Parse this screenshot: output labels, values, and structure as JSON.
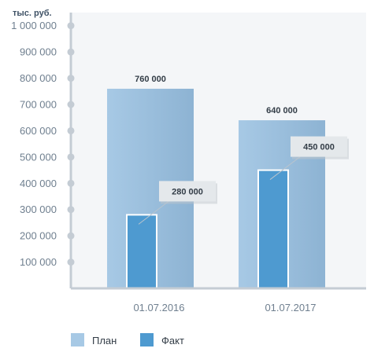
{
  "chart_data": {
    "type": "bar",
    "unit_label": "тыс. руб.",
    "categories": [
      "01.07.2016",
      "01.07.2017"
    ],
    "series": [
      {
        "name": "План",
        "values": [
          760000,
          640000
        ],
        "color": "#a7c9e5",
        "color_dark": "#8db3d3"
      },
      {
        "name": "Факт",
        "values": [
          280000,
          450000
        ],
        "color": "#4e9ad0"
      }
    ],
    "value_labels": {
      "plan": [
        "760 000",
        "640 000"
      ],
      "fact": [
        "280 000",
        "450 000"
      ]
    },
    "y_ticks": [
      {
        "value": 100000,
        "label": "100 000"
      },
      {
        "value": 200000,
        "label": "200 000"
      },
      {
        "value": 300000,
        "label": "300 000"
      },
      {
        "value": 400000,
        "label": "400 000"
      },
      {
        "value": 500000,
        "label": "500 000"
      },
      {
        "value": 600000,
        "label": "600 000"
      },
      {
        "value": 700000,
        "label": "700 000"
      },
      {
        "value": 800000,
        "label": "800 000"
      },
      {
        "value": 900000,
        "label": "900 000"
      },
      {
        "value": 1000000,
        "label": "1 000 000"
      }
    ],
    "ylim": [
      0,
      1050000
    ],
    "grid": false,
    "legend_position": "bottom-left",
    "background": "#f4f6f8",
    "axis_color": "#c4ccd4"
  }
}
